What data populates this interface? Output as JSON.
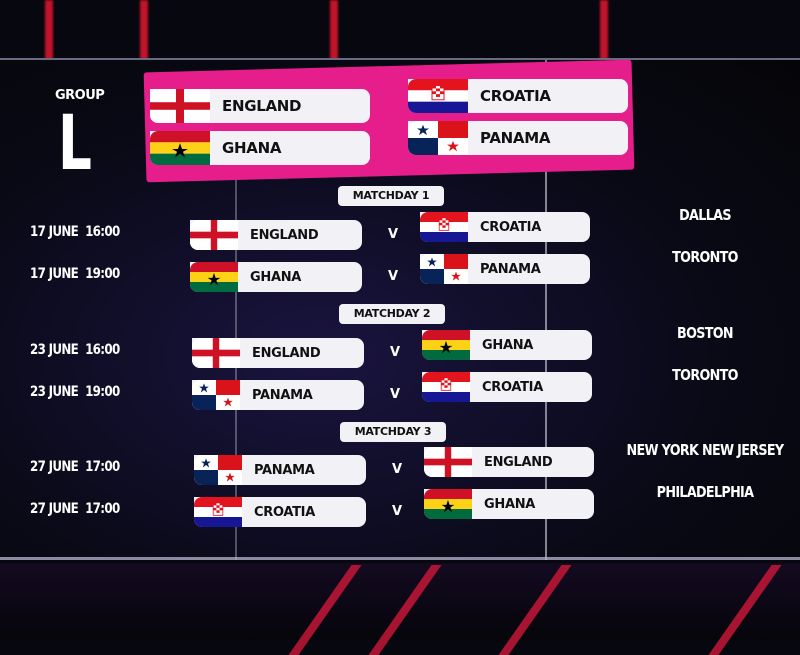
{
  "group": {
    "label": "GROUP",
    "letter": "L"
  },
  "teams": [
    {
      "name": "ENGLAND",
      "flag": "england"
    },
    {
      "name": "GHANA",
      "flag": "ghana"
    },
    {
      "name": "CROATIA",
      "flag": "croatia"
    },
    {
      "name": "PANAMA",
      "flag": "panama"
    }
  ],
  "vs_label": "V",
  "matchdays": [
    {
      "label": "MATCHDAY 1",
      "matches": [
        {
          "date": "17 JUNE",
          "time": "16:00",
          "home": "ENGLAND",
          "home_flag": "england",
          "away": "CROATIA",
          "away_flag": "croatia",
          "venue": "DALLAS"
        },
        {
          "date": "17 JUNE",
          "time": "19:00",
          "home": "GHANA",
          "home_flag": "ghana",
          "away": "PANAMA",
          "away_flag": "panama",
          "venue": "TORONTO"
        }
      ]
    },
    {
      "label": "MATCHDAY 2",
      "matches": [
        {
          "date": "23 JUNE",
          "time": "16:00",
          "home": "ENGLAND",
          "home_flag": "england",
          "away": "GHANA",
          "away_flag": "ghana",
          "venue": "BOSTON"
        },
        {
          "date": "23 JUNE",
          "time": "19:00",
          "home": "PANAMA",
          "home_flag": "panama",
          "away": "CROATIA",
          "away_flag": "croatia",
          "venue": "TORONTO"
        }
      ]
    },
    {
      "label": "MATCHDAY 3",
      "matches": [
        {
          "date": "27 JUNE",
          "time": "17:00",
          "home": "PANAMA",
          "home_flag": "panama",
          "away": "ENGLAND",
          "away_flag": "england",
          "venue": "NEW YORK NEW JERSEY"
        },
        {
          "date": "27 JUNE",
          "time": "17:00",
          "home": "CROATIA",
          "home_flag": "croatia",
          "away": "GHANA",
          "away_flag": "ghana",
          "venue": "PHILADELPHIA"
        }
      ]
    }
  ],
  "colors": {
    "group_box": "#e51e8c",
    "background": "#07070f",
    "pill": "#f2f2f6"
  }
}
